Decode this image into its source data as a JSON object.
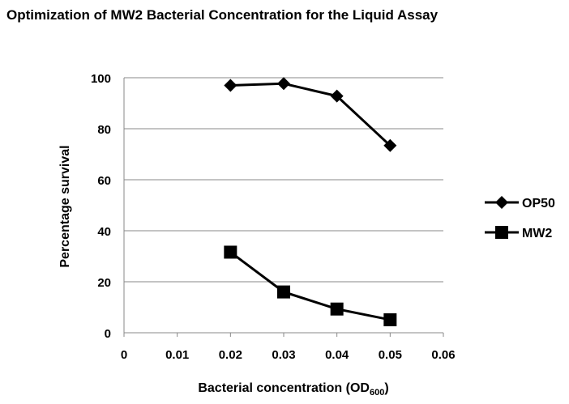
{
  "chart_data": {
    "type": "line",
    "title": "Optimization of MW2 Bacterial Concentration for the Liquid Assay",
    "xlabel": [
      "Bacterial concentration (OD",
      "600",
      ")"
    ],
    "ylabel": "Percentage survival",
    "x": [
      0.02,
      0.03,
      0.04,
      0.05
    ],
    "series": [
      {
        "name": "OP50",
        "color": "#000000",
        "marker": "diamond",
        "values": [
          97,
          97.7,
          92.8,
          73.4
        ]
      },
      {
        "name": "MW2",
        "color": "#000000",
        "marker": "square",
        "values": [
          31.6,
          16,
          9.3,
          5.1
        ]
      }
    ],
    "xlim": [
      0,
      0.06
    ],
    "xticks": [
      0,
      0.01,
      0.02,
      0.03,
      0.04,
      0.05,
      0.06
    ],
    "ylim": [
      0,
      100
    ],
    "yticks": [
      0,
      20,
      40,
      60,
      80,
      100
    ],
    "grid": true,
    "legend": "right"
  }
}
